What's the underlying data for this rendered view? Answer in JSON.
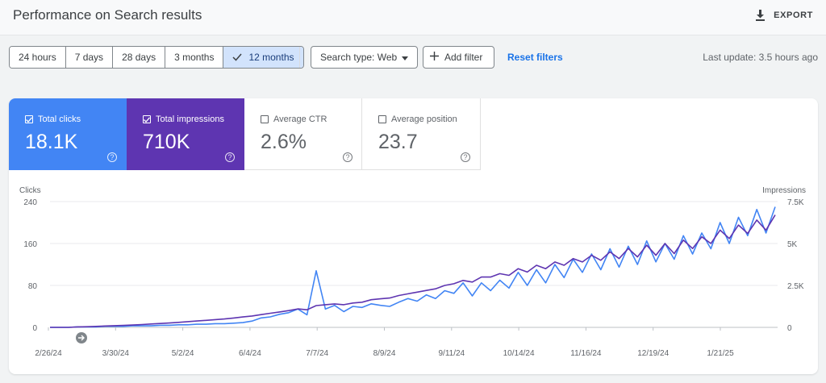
{
  "header": {
    "title": "Performance on Search results",
    "export_label": "EXPORT"
  },
  "filters": {
    "ranges": [
      {
        "label": "24 hours",
        "selected": false
      },
      {
        "label": "7 days",
        "selected": false
      },
      {
        "label": "28 days",
        "selected": false
      },
      {
        "label": "3 months",
        "selected": false
      },
      {
        "label": "12 months",
        "selected": true
      }
    ],
    "search_type": "Search type: Web",
    "add_filter": "Add filter",
    "reset": "Reset filters",
    "last_update": "Last update: 3.5 hours ago"
  },
  "metrics": {
    "clicks": {
      "label": "Total clicks",
      "value": "18.1K",
      "checked": true,
      "color": "#4285f4"
    },
    "impressions": {
      "label": "Total impressions",
      "value": "710K",
      "checked": true,
      "color": "#5e35b1"
    },
    "ctr": {
      "label": "Average CTR",
      "value": "2.6%",
      "checked": false
    },
    "position": {
      "label": "Average position",
      "value": "23.7",
      "checked": false
    }
  },
  "chart_data": {
    "type": "line",
    "left_axis_title": "Clicks",
    "right_axis_title": "Impressions",
    "left_ticks": [
      "240",
      "160",
      "80",
      "0"
    ],
    "right_ticks": [
      "7.5K",
      "5K",
      "2.5K",
      "0"
    ],
    "ylim_left": [
      0,
      240
    ],
    "ylim_right": [
      0,
      7500
    ],
    "x_tick_labels": [
      "2/26/24",
      "3/30/24",
      "5/2/24",
      "6/4/24",
      "7/7/24",
      "8/9/24",
      "9/11/24",
      "10/14/24",
      "11/16/24",
      "12/19/24",
      "1/21/25"
    ],
    "grid": true,
    "series": [
      {
        "key": "clicks",
        "color": "#4285f4",
        "axis": "left",
        "values": [
          0,
          0,
          0,
          1,
          1,
          1,
          2,
          2,
          2,
          3,
          3,
          3,
          4,
          4,
          5,
          5,
          6,
          6,
          7,
          7,
          8,
          9,
          12,
          18,
          20,
          25,
          28,
          35,
          24,
          108,
          35,
          42,
          30,
          40,
          38,
          45,
          42,
          40,
          48,
          55,
          50,
          62,
          55,
          70,
          65,
          85,
          60,
          85,
          70,
          90,
          75,
          105,
          80,
          110,
          85,
          120,
          95,
          130,
          105,
          140,
          110,
          150,
          115,
          155,
          120,
          165,
          125,
          160,
          130,
          175,
          140,
          180,
          150,
          200,
          160,
          210,
          175,
          225,
          180,
          230
        ]
      },
      {
        "key": "impressions",
        "color": "#5e35b1",
        "axis": "right",
        "values": [
          0,
          0,
          0,
          30,
          40,
          60,
          80,
          100,
          120,
          140,
          170,
          200,
          230,
          260,
          300,
          340,
          380,
          420,
          460,
          500,
          560,
          620,
          680,
          760,
          840,
          920,
          1000,
          1100,
          1050,
          1300,
          1350,
          1400,
          1350,
          1450,
          1500,
          1650,
          1700,
          1750,
          1900,
          2000,
          2100,
          2200,
          2300,
          2500,
          2600,
          2800,
          2700,
          3000,
          3000,
          3200,
          3100,
          3500,
          3300,
          3700,
          3500,
          3900,
          3700,
          4100,
          3900,
          4300,
          4000,
          4500,
          4100,
          4700,
          4200,
          4900,
          4300,
          5000,
          4400,
          5200,
          4700,
          5400,
          5000,
          5800,
          5300,
          6100,
          5600,
          6400,
          5800,
          6700
        ]
      }
    ]
  }
}
